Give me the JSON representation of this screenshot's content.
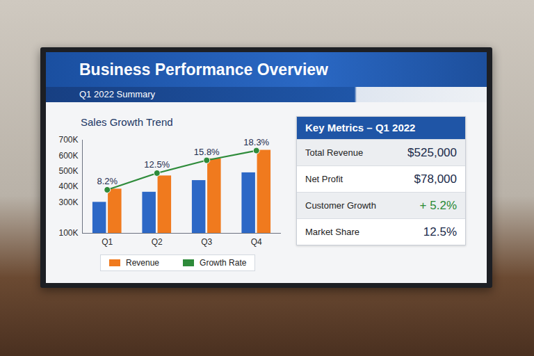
{
  "header": {
    "title": "Business Performance Overview",
    "subtitle": "Q1 2022 Summary"
  },
  "chart_data": {
    "type": "bar",
    "title": "Sales Growth Trend",
    "categories": [
      "Q1",
      "Q2",
      "Q3",
      "Q4"
    ],
    "series": [
      {
        "color": "#2d68c6",
        "values": [
          300000,
          365000,
          440000,
          490000
        ]
      },
      {
        "name": "Revenue",
        "color": "#f07a1e",
        "values": [
          385000,
          470000,
          580000,
          635000
        ]
      },
      {
        "name": "Growth Rate",
        "type": "line",
        "axis": "y2",
        "color": "#2e8b3a",
        "marker": "circle",
        "data_labels": true,
        "values": [
          8.2,
          12.5,
          15.8,
          18.3
        ],
        "value_labels": [
          "8.2%",
          "12.5%",
          "15.8%",
          "18.3%"
        ]
      }
    ],
    "ylim": [
      100000,
      700000
    ],
    "yticks": [
      {
        "value": 100000,
        "label": "100K"
      },
      {
        "value": 300000,
        "label": "300K"
      },
      {
        "value": 400000,
        "label": "400K"
      },
      {
        "value": 500000,
        "label": "500K"
      },
      {
        "value": 600000,
        "label": "600K"
      },
      {
        "value": 700000,
        "label": "700K"
      }
    ],
    "y2lim": [
      -3,
      21
    ],
    "y2ticks": [],
    "grid": false,
    "legend": "bottom"
  },
  "table": {
    "title": "Key Metrics – Q1 2022",
    "rows": [
      [
        "Total Revenue",
        "$525,000"
      ],
      [
        "Net Profit",
        "$78,000"
      ],
      [
        "Customer Growth",
        "+ 5.2%"
      ],
      [
        "Market Share",
        "12.5%"
      ]
    ]
  }
}
